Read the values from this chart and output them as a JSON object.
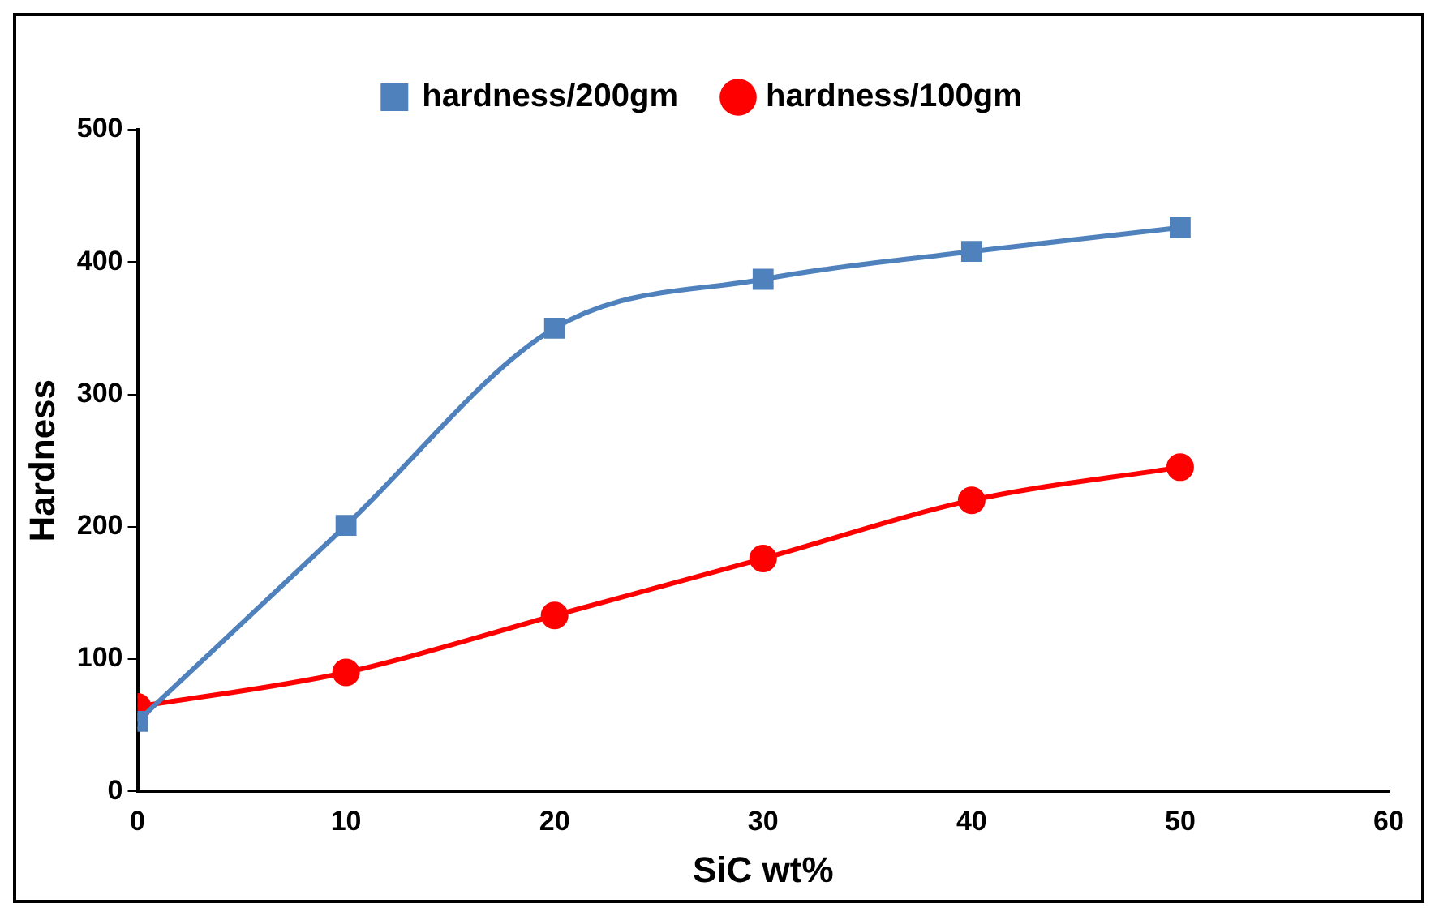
{
  "chart_data": {
    "type": "line",
    "xlabel": "SiC wt%",
    "ylabel": "Hardness",
    "x": [
      0,
      10,
      20,
      30,
      40,
      50
    ],
    "series": [
      {
        "name": "hardness/200gm",
        "color": "#4f81bd",
        "marker": "square",
        "values": [
          53,
          201,
          350,
          387,
          408,
          426
        ]
      },
      {
        "name": "hardness/100gm",
        "color": "#ff0000",
        "marker": "circle",
        "values": [
          64,
          90,
          133,
          176,
          220,
          245
        ]
      }
    ],
    "xlim": [
      0,
      60
    ],
    "xticks": [
      0,
      10,
      20,
      30,
      40,
      50,
      60
    ],
    "ylim": [
      0,
      500
    ],
    "yticks": [
      0,
      100,
      200,
      300,
      400,
      500
    ],
    "grid": false,
    "legend": "top",
    "line_style": "solid"
  }
}
